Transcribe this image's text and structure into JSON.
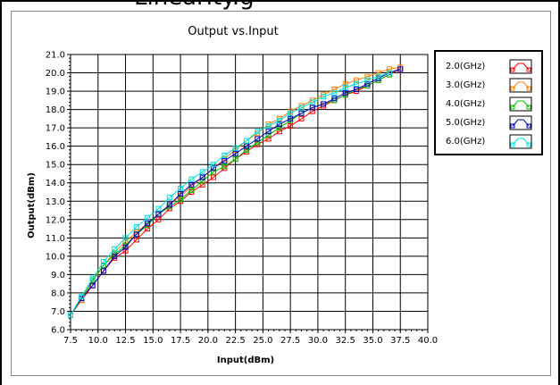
{
  "header": {
    "partial_text": "Linearity.g"
  },
  "chart_data": {
    "type": "line",
    "title": "Output vs.Input",
    "xlabel": "Input(dBm)",
    "ylabel": "Output(dBm)",
    "xlim": [
      7.5,
      40.0
    ],
    "ylim": [
      6.0,
      21.0
    ],
    "xticks": [
      7.5,
      10.0,
      12.5,
      15.0,
      17.5,
      20.0,
      22.5,
      25.0,
      27.5,
      30.0,
      32.5,
      35.0,
      37.5,
      40.0
    ],
    "xtick_labels": [
      "7.5",
      "10.0",
      "12.5",
      "15.0",
      "17.5",
      "20.0",
      "22.5",
      "25.0",
      "27.5",
      "30.0",
      "32.5",
      "35.0",
      "37.5",
      "40.0"
    ],
    "yticks": [
      6.0,
      7.0,
      8.0,
      9.0,
      10.0,
      11.0,
      12.0,
      13.0,
      14.0,
      15.0,
      16.0,
      17.0,
      18.0,
      19.0,
      20.0,
      21.0
    ],
    "ytick_labels": [
      "6.0",
      "7.0",
      "8.0",
      "9.0",
      "10.0",
      "11.0",
      "12.0",
      "13.0",
      "14.0",
      "15.0",
      "16.0",
      "17.0",
      "18.0",
      "19.0",
      "20.0",
      "21.0"
    ],
    "grid": true,
    "legend_position": "right",
    "series": [
      {
        "name": "2.0(GHz)",
        "color": "#ff0000",
        "x": [
          7.5,
          8.5,
          9.5,
          10.5,
          11.5,
          12.5,
          13.5,
          14.5,
          15.5,
          16.5,
          17.5,
          18.5,
          19.5,
          20.5,
          21.5,
          22.5,
          23.5,
          24.5,
          25.5,
          26.5,
          27.5,
          28.5,
          29.5,
          30.5,
          31.5,
          32.5,
          33.5,
          34.5,
          35.5,
          36.5,
          37.5
        ],
        "y": [
          6.8,
          7.6,
          8.4,
          9.2,
          9.9,
          10.3,
          10.9,
          11.5,
          12.0,
          12.6,
          13.0,
          13.5,
          13.9,
          14.3,
          14.8,
          15.3,
          15.7,
          16.1,
          16.4,
          16.8,
          17.1,
          17.5,
          17.9,
          18.2,
          18.5,
          18.8,
          19.0,
          19.3,
          19.6,
          19.9,
          20.2
        ]
      },
      {
        "name": "3.0(GHz)",
        "color": "#ff8000",
        "x": [
          7.5,
          8.5,
          9.5,
          10.5,
          11.5,
          12.5,
          13.5,
          14.5,
          15.5,
          16.5,
          17.5,
          18.5,
          19.5,
          20.5,
          21.5,
          22.5,
          23.5,
          24.5,
          25.5,
          26.5,
          27.5,
          28.5,
          29.5,
          30.5,
          31.5,
          32.5,
          33.5,
          34.5,
          35.5,
          36.5,
          37.5
        ],
        "y": [
          6.8,
          7.6,
          8.6,
          9.5,
          10.2,
          10.8,
          11.3,
          11.8,
          12.3,
          12.8,
          13.3,
          13.8,
          14.3,
          14.8,
          15.3,
          15.8,
          16.3,
          16.7,
          17.2,
          17.5,
          17.9,
          18.2,
          18.5,
          18.8,
          19.1,
          19.4,
          19.6,
          19.8,
          20.0,
          20.2,
          20.3
        ]
      },
      {
        "name": "4.0(GHz)",
        "color": "#00c000",
        "x": [
          7.5,
          8.5,
          9.5,
          10.5,
          11.5,
          12.5,
          13.5,
          14.5,
          15.5,
          16.5,
          17.5,
          18.5,
          19.5,
          20.5,
          21.5,
          22.5,
          23.5,
          24.5,
          25.5,
          26.5,
          27.5,
          28.5,
          29.5,
          30.5,
          31.5,
          32.5,
          33.5,
          34.5,
          35.5,
          36.5
        ],
        "y": [
          6.8,
          7.7,
          8.7,
          9.5,
          10.1,
          10.6,
          11.2,
          11.7,
          12.3,
          12.7,
          13.1,
          13.6,
          14.1,
          14.6,
          14.9,
          15.3,
          15.8,
          16.2,
          16.6,
          17.0,
          17.4,
          17.8,
          18.1,
          18.3,
          18.5,
          18.8,
          19.1,
          19.3,
          19.6,
          19.9
        ]
      },
      {
        "name": "5.0(GHz)",
        "color": "#0000c0",
        "x": [
          7.5,
          8.5,
          9.5,
          10.5,
          11.5,
          12.5,
          13.5,
          14.5,
          15.5,
          16.5,
          17.5,
          18.5,
          19.5,
          20.5,
          21.5,
          22.5,
          23.5,
          24.5,
          25.5,
          26.5,
          27.5,
          28.5,
          29.5,
          30.5,
          31.5,
          32.5,
          33.5,
          34.5,
          35.5,
          36.5,
          37.5
        ],
        "y": [
          6.8,
          7.7,
          8.4,
          9.2,
          10.0,
          10.5,
          11.2,
          11.8,
          12.3,
          12.8,
          13.4,
          13.9,
          14.3,
          14.8,
          15.2,
          15.6,
          16.0,
          16.4,
          16.8,
          17.2,
          17.5,
          17.8,
          18.1,
          18.3,
          18.6,
          18.9,
          19.1,
          19.4,
          19.7,
          20.0,
          20.2
        ]
      },
      {
        "name": "6.0(GHz)",
        "color": "#00e0e0",
        "x": [
          7.5,
          8.5,
          9.5,
          10.5,
          11.5,
          12.5,
          13.5,
          14.5,
          15.5,
          16.5,
          17.5,
          18.5,
          19.5,
          20.5,
          21.5,
          22.5,
          23.5,
          24.5,
          25.5,
          26.5,
          27.5,
          28.5,
          29.5,
          30.5,
          31.5,
          32.5,
          33.5,
          34.5,
          35.5,
          36.5
        ],
        "y": [
          6.8,
          7.8,
          8.8,
          9.7,
          10.4,
          11.0,
          11.6,
          12.1,
          12.6,
          13.2,
          13.7,
          14.2,
          14.6,
          15.0,
          15.5,
          15.9,
          16.3,
          16.8,
          17.1,
          17.4,
          17.8,
          18.1,
          18.4,
          18.7,
          18.9,
          19.2,
          19.4,
          19.6,
          19.8,
          20.0
        ]
      }
    ]
  }
}
